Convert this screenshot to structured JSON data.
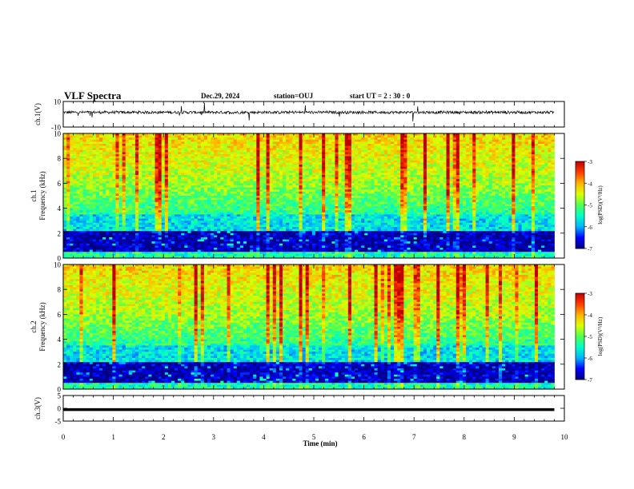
{
  "header": {
    "title": "VLF Spectra",
    "date": "Dec.29, 2024",
    "station": "station=OUJ",
    "start": "start  UT  =   2  : 30 : 0"
  },
  "chart_data": [
    {
      "type": "line",
      "ylabel": "ch.1(V)",
      "ylim": [
        -10,
        10
      ],
      "yticks": [
        "10",
        "-10"
      ],
      "xlim": [
        0,
        10
      ],
      "description_series": "waveform",
      "baseline": 1.5
    },
    {
      "type": "heatmap",
      "ylabel": "ch.1\nFrequency (kHz)",
      "ylabel_lines": [
        "ch.1",
        "Frequency  (kHz)"
      ],
      "ylim": [
        0,
        10
      ],
      "yticks": [
        "0",
        "2",
        "4",
        "6",
        "8",
        "10"
      ],
      "xlim": [
        0,
        9.8
      ],
      "colorbar": {
        "label": "log(PSD)(V²/Hz)",
        "range": [
          -7,
          -3
        ],
        "ticks": [
          "-3",
          "-4",
          "-5",
          "-6",
          "-7"
        ]
      }
    },
    {
      "type": "heatmap",
      "ylabel_lines": [
        "ch.2",
        "Frequency  (kHz)"
      ],
      "ylim": [
        0,
        10
      ],
      "yticks": [
        "0",
        "2",
        "4",
        "6",
        "8",
        "10"
      ],
      "xlim": [
        0,
        9.8
      ],
      "colorbar": {
        "label": "log(PSD)(V²/Hz)",
        "range": [
          -7,
          -3
        ],
        "ticks": [
          "-3",
          "-4",
          "-5",
          "-6",
          "-7"
        ]
      }
    },
    {
      "type": "line",
      "ylabel": "ch.3(V)",
      "ylim": [
        -5,
        5
      ],
      "yticks": [
        "5",
        "0",
        "-5"
      ],
      "constant_value": -0.5,
      "xlim": [
        0,
        9.8
      ]
    }
  ],
  "xaxis": {
    "label": "Time  (min)",
    "range": [
      0,
      10
    ],
    "ticks": [
      "0",
      "1",
      "2",
      "3",
      "4",
      "5",
      "6",
      "7",
      "8",
      "9",
      "10"
    ]
  },
  "colors": {
    "background": "#ffffff",
    "axis": "#000000",
    "colormap": [
      "#000080",
      "#0000ff",
      "#00b4ff",
      "#00ffc8",
      "#50ff50",
      "#dcff00",
      "#ffb400",
      "#ff3c00",
      "#c00000"
    ]
  }
}
